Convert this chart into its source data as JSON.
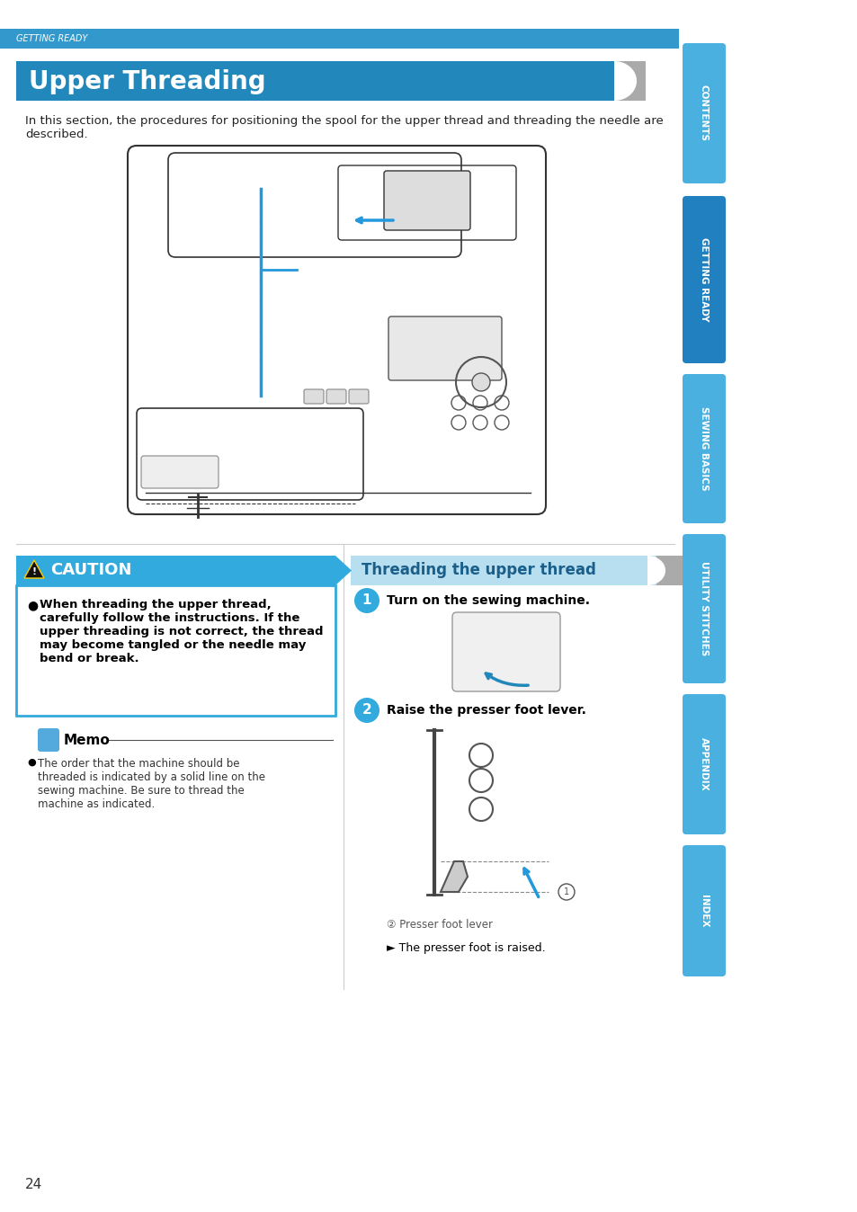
{
  "page_bg": "#ffffff",
  "top_bar_color": "#3399cc",
  "top_bar_text": "GETTING READY",
  "top_bar_text_color": "#ffffff",
  "title_bg": "#2288bb",
  "title_text": "Upper Threading",
  "title_text_color": "#ffffff",
  "intro_text": "In this section, the procedures for positioning the spool for the upper thread and threading the needle are\ndescribed.",
  "caution_header_bg": "#33aadd",
  "caution_header_text": "CAUTION",
  "caution_border_color": "#33aadd",
  "caution_body_text": "When threading the upper thread,\ncarefully follow the instructions. If the\nupper threading is not correct, the thread\nmay become tangled or the needle may\nbend or break.",
  "memo_title": "Memo",
  "memo_body": "The order that the machine should be\nthreaded is indicated by a solid line on the\nsewing machine. Be sure to thread the\nmachine as indicated.",
  "threading_header_bg": "#b8dff0",
  "threading_header_text": "Threading the upper thread",
  "threading_header_text_color": "#1a5f8a",
  "step1_label": "1",
  "step1_text": "Turn on the sewing machine.",
  "step2_label": "2",
  "step2_text": "Raise the presser foot lever.",
  "step2_note": "② Presser foot lever",
  "step2_result": "► The presser foot is raised.",
  "sidebar_tabs": [
    "CONTENTS",
    "GETTING READY",
    "SEWING BASICS",
    "UTILITY STITCHES",
    "APPENDIX",
    "INDEX"
  ],
  "sidebar_colors": [
    "#4ab0e0",
    "#2080c0",
    "#4ab0e0",
    "#4ab0e0",
    "#4ab0e0",
    "#4ab0e0"
  ],
  "page_number": "24",
  "separator_color": "#cccccc",
  "blue_accent": "#33aadd",
  "gray_swoosh": "#aaaaaa"
}
